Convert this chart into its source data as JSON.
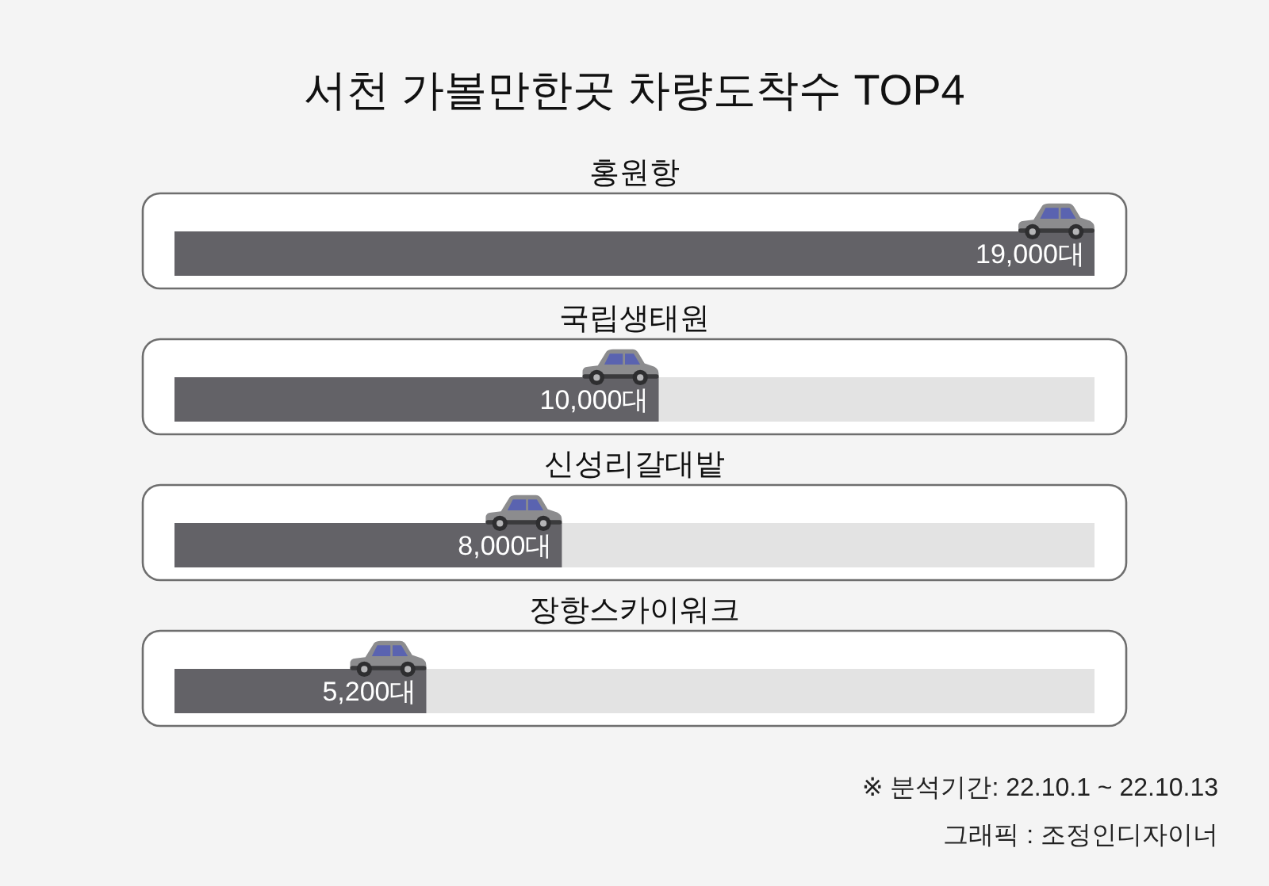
{
  "chart_data": {
    "type": "bar",
    "orientation": "horizontal",
    "title": "서천 가볼만한곳 차량도착수 TOP4",
    "categories": [
      "홍원항",
      "국립생태원",
      "신성리갈대밭",
      "장항스카이워크"
    ],
    "values": [
      19000,
      10000,
      8000,
      5200
    ],
    "value_labels": [
      "19,000대",
      "10,000대",
      "8,000대",
      "5,200대"
    ],
    "color": "#636267",
    "annotations": [
      "※ 분석기간: 22.10.1 ~ 22.10.13",
      "그래픽 : 조정인디자이너"
    ]
  }
}
